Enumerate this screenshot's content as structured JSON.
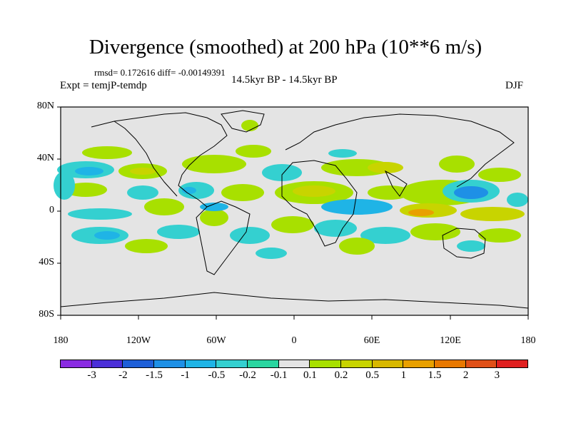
{
  "title": "Divergence (smoothed) at 200 hPa (10**6 m/s)",
  "stats": "rmsd= 0.172616 diff= -0.00149391",
  "experiment": "Expt = temjP-temdp",
  "period": "14.5kyr BP - 14.5kyr BP",
  "season": "DJF",
  "y_axis_labels": [
    "80N",
    "40N",
    "0",
    "40S",
    "80S"
  ],
  "x_axis_labels": [
    "180",
    "120W",
    "60W",
    "0",
    "60E",
    "120E",
    "180"
  ],
  "colorbar": {
    "colors": [
      "#8a2be2",
      "#4b2fd8",
      "#1e5fd8",
      "#1e90e6",
      "#1fb4e6",
      "#34d0d0",
      "#2ad6a0",
      "#e4e4e4",
      "#a8e000",
      "#c8d400",
      "#d8b800",
      "#e8a000",
      "#e87800",
      "#e05018",
      "#e02020"
    ],
    "labels": [
      "-3",
      "-2",
      "-1.5",
      "-1",
      "-0.5",
      "-0.2",
      "-0.1",
      "0.1",
      "0.2",
      "0.5",
      "1",
      "1.5",
      "2",
      "3"
    ]
  }
}
